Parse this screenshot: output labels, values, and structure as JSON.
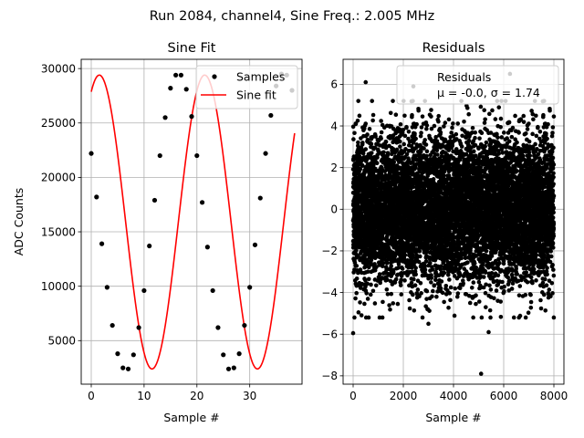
{
  "figure": {
    "suptitle": "Run 2084, channel4, Sine Freq.: 2.005 MHz"
  },
  "colors": {
    "samples": "#000000",
    "fit": "#ff0000",
    "residuals": "#000000",
    "grid": "#b0b0b0"
  },
  "chart_data": [
    {
      "type": "line",
      "title": "Sine Fit",
      "xlabel": "Sample #",
      "ylabel": "ADC Counts",
      "xlim": [
        -1.9,
        39.9
      ],
      "ylim": [
        1000,
        30850
      ],
      "xticks": [
        0,
        10,
        20,
        30
      ],
      "xtick_labels": [
        "0",
        "10",
        "20",
        "30"
      ],
      "yticks": [
        5000,
        10000,
        15000,
        20000,
        25000,
        30000
      ],
      "ytick_labels": [
        "5000",
        "10000",
        "15000",
        "20000",
        "25000",
        "30000"
      ],
      "grid": true,
      "legend_position": "upper right",
      "legend": [
        "Samples",
        "Sine fit"
      ],
      "sine_model": {
        "offset": 15900,
        "amplitude": 13500,
        "period_samples": 19.95,
        "phase_rad": 1.09
      },
      "series": [
        {
          "name": "Samples",
          "style": "markers",
          "x": [
            0,
            1,
            2,
            3,
            4,
            5,
            6,
            7,
            8,
            9,
            10,
            11,
            12,
            13,
            14,
            15,
            16,
            17,
            18,
            19,
            20,
            21,
            22,
            23,
            24,
            25,
            26,
            27,
            28,
            29,
            30,
            31,
            32,
            33,
            34,
            35,
            36,
            37,
            38
          ],
          "y": [
            22200,
            18200,
            13900,
            9900,
            6400,
            3800,
            2500,
            2400,
            3700,
            6200,
            9600,
            13700,
            17900,
            22000,
            25500,
            28200,
            29400,
            29400,
            28100,
            25600,
            22000,
            17700,
            13600,
            9600,
            6200,
            3700,
            2400,
            2500,
            3800,
            6400,
            9900,
            13800,
            18100,
            22200,
            25700,
            28400,
            29500,
            29400,
            28000
          ]
        },
        {
          "name": "Sine fit",
          "style": "line",
          "x_range": [
            0,
            38.5
          ]
        }
      ]
    },
    {
      "type": "scatter",
      "title": "Residuals",
      "xlabel": "Sample #",
      "ylabel": "",
      "xlim": [
        -400,
        8400
      ],
      "ylim": [
        -8.4,
        7.2
      ],
      "xticks": [
        0,
        2000,
        4000,
        6000,
        8000
      ],
      "xtick_labels": [
        "0",
        "2000",
        "4000",
        "6000",
        "8000"
      ],
      "yticks": [
        -8,
        -6,
        -4,
        -2,
        0,
        2,
        4,
        6
      ],
      "ytick_labels": [
        "−8",
        "−6",
        "−4",
        "−2",
        "0",
        "2",
        "4",
        "6"
      ],
      "grid": true,
      "legend_position": "upper right",
      "legend": [
        "Residuals",
        "μ = -0.0, σ = 1.74"
      ],
      "series": [
        {
          "name": "Residuals",
          "n_points": 8000,
          "mean": 0.0,
          "std": 1.74,
          "outliers": [
            {
              "x": 0,
              "y": -5.95
            },
            {
              "x": 500,
              "y": 6.1
            },
            {
              "x": 2400,
              "y": 5.9
            },
            {
              "x": 5100,
              "y": -7.9
            },
            {
              "x": 6250,
              "y": 6.5
            },
            {
              "x": 5400,
              "y": -5.9
            },
            {
              "x": 3000,
              "y": -5.5
            }
          ]
        }
      ]
    }
  ]
}
